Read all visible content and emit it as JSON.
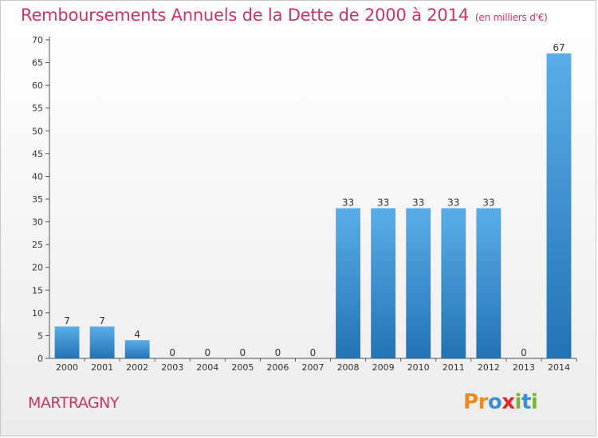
{
  "title": {
    "main": "Remboursements Annuels de la Dette de 2000 à 2014",
    "unit": "(en milliers d'€)"
  },
  "commune": "MARTRAGNY",
  "logo": {
    "text": "Proxiti",
    "letters": [
      {
        "char": "P",
        "color": "#f08a1c"
      },
      {
        "char": "r",
        "color": "#f08a1c"
      },
      {
        "char": "o",
        "color": "#3a8fd6"
      },
      {
        "char": "x",
        "color": "#e0262e"
      },
      {
        "char": "i",
        "color": "#7ab632"
      },
      {
        "char": "t",
        "color": "#3a8fd6"
      },
      {
        "char": "i",
        "color": "#7ab632"
      }
    ]
  },
  "colors": {
    "title": "#cc3366",
    "bar_light": "#5aaee8",
    "bar_dark": "#2173b3"
  },
  "chart_data": {
    "type": "bar",
    "categories": [
      "2000",
      "2001",
      "2002",
      "2003",
      "2004",
      "2005",
      "2006",
      "2007",
      "2008",
      "2009",
      "2010",
      "2011",
      "2012",
      "2013",
      "2014"
    ],
    "values": [
      7,
      7,
      4,
      0,
      0,
      0,
      0,
      0,
      33,
      33,
      33,
      33,
      33,
      0,
      67
    ],
    "yticks": [
      0,
      5,
      10,
      15,
      20,
      25,
      30,
      35,
      40,
      45,
      50,
      55,
      60,
      65,
      70
    ],
    "ylim": [
      0,
      70
    ],
    "grid": false,
    "legend": "none"
  }
}
